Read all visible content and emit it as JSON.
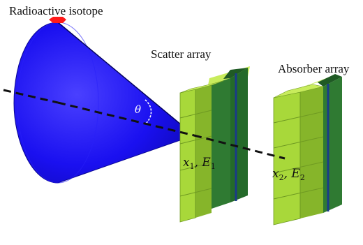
{
  "labels": {
    "source": "Radioactive isotope",
    "scatter": "Scatter array",
    "absorber": "Absorber array",
    "angle": "θ",
    "scatter_pos": "x",
    "scatter_pos_sub": "1",
    "scatter_energy": "E",
    "scatter_energy_sub": "1",
    "absorber_pos": "x",
    "absorber_pos_sub": "2",
    "absorber_energy": "E",
    "absorber_energy_sub": "2"
  },
  "colors": {
    "cone": "#1a10f0",
    "cone_dark": "#0b07b4",
    "source": "#ff1a1a",
    "module_front": "#a8d83a",
    "module_top": "#c8ec5c",
    "module_side": "#86b52a",
    "board": "#2f7a32",
    "board_dark": "#1f5a24",
    "strip": "#1a3a8a",
    "axis": "#111111"
  }
}
